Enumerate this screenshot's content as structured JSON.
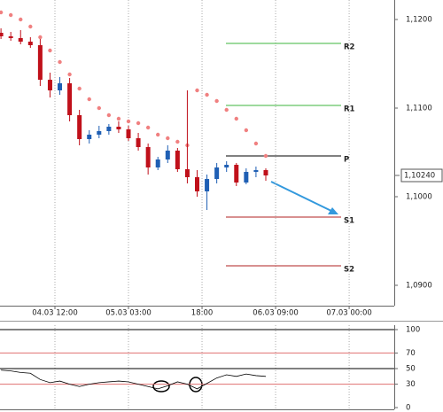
{
  "chart_data": {
    "type": "candlestick",
    "x": [
      1,
      3,
      5,
      7,
      9,
      11,
      13,
      15,
      17,
      19,
      21,
      23,
      25,
      27,
      29,
      31,
      33,
      35,
      37,
      39,
      41,
      43,
      45,
      47,
      49,
      51,
      53,
      55
    ],
    "open": [
      1.1185,
      1.1181,
      1.1179,
      1.1175,
      1.1171,
      1.1132,
      1.112,
      1.1128,
      1.1092,
      1.1065,
      1.107,
      1.1074,
      1.1079,
      1.1076,
      1.1066,
      1.1056,
      1.1033,
      1.1042,
      1.1052,
      1.1031,
      1.1022,
      1.1006,
      1.102,
      1.1033,
      1.1036,
      1.1016,
      1.1028,
      1.103
    ],
    "high": [
      1.119,
      1.1186,
      1.1188,
      1.118,
      1.1178,
      1.114,
      1.1135,
      1.1134,
      1.1098,
      1.1075,
      1.108,
      1.1082,
      1.1085,
      1.108,
      1.1072,
      1.106,
      1.1045,
      1.1058,
      1.1055,
      1.112,
      1.103,
      1.1025,
      1.1038,
      1.104,
      1.1038,
      1.1032,
      1.1034,
      1.1032
    ],
    "low": [
      1.1178,
      1.1176,
      1.1172,
      1.1168,
      1.1125,
      1.1112,
      1.1115,
      1.1085,
      1.1058,
      1.106,
      1.1066,
      1.107,
      1.1072,
      1.1063,
      1.1052,
      1.1025,
      1.103,
      1.1038,
      1.1028,
      1.1015,
      1.1,
      1.0985,
      1.1015,
      1.1028,
      1.1012,
      1.1014,
      1.1022,
      1.1018
    ],
    "close": [
      1.1181,
      1.1179,
      1.1175,
      1.1171,
      1.1132,
      1.112,
      1.1128,
      1.1092,
      1.1065,
      1.107,
      1.1074,
      1.1079,
      1.1076,
      1.1066,
      1.1056,
      1.1033,
      1.1042,
      1.1052,
      1.1031,
      1.1022,
      1.1006,
      1.102,
      1.1033,
      1.1036,
      1.1016,
      1.1028,
      1.103,
      1.1024
    ],
    "up_color": "#1f5fb4",
    "down_color": "#c0101a",
    "sar": {
      "color": "#f08080",
      "values": [
        1.1208,
        1.1205,
        1.12,
        1.1192,
        1.118,
        1.1165,
        1.1152,
        1.1138,
        1.1122,
        1.111,
        1.11,
        1.1092,
        1.1088,
        1.1085,
        1.1083,
        1.1078,
        1.107,
        1.1066,
        1.1062,
        1.1058,
        1.112,
        1.1115,
        1.1108,
        1.1098,
        1.1088,
        1.1075,
        1.106,
        1.1046
      ]
    },
    "xlim": [
      0.8,
      81.2
    ],
    "xticks": [
      {
        "value": 12,
        "label": "04.03 12:00"
      },
      {
        "value": 27,
        "label": "05.03 03:00"
      },
      {
        "value": 42,
        "label": "18:00"
      },
      {
        "value": 57,
        "label": "06.03 09:00"
      },
      {
        "value": 72,
        "label": "07.03 00:00"
      }
    ],
    "ylim": [
      1.0877,
      1.1222
    ],
    "yticks": [
      {
        "value": 1.12,
        "label": "1,1200"
      },
      {
        "value": 1.11,
        "label": "1,1100"
      },
      {
        "value": 1.1,
        "label": "1,1000"
      },
      {
        "value": 1.09,
        "label": "1,0900"
      }
    ],
    "last_price": {
      "value": 1.1024,
      "label": "1,10240"
    },
    "pivots": [
      {
        "name": "R2",
        "value": 1.1173,
        "color": "#3cb43c"
      },
      {
        "name": "R1",
        "value": 1.1103,
        "color": "#3cb43c"
      },
      {
        "name": "P",
        "value": 1.1046,
        "color": "#000000"
      },
      {
        "name": "S1",
        "value": 1.0977,
        "color": "#b22222"
      },
      {
        "name": "S2",
        "value": 1.0922,
        "color": "#b22222"
      }
    ],
    "rsi": {
      "color": "#000000",
      "values": [
        48,
        47,
        45,
        44,
        36,
        32,
        34,
        30,
        27,
        30,
        32,
        33,
        34,
        33,
        30,
        27,
        24,
        28,
        33,
        30,
        24,
        31,
        38,
        42,
        40,
        43,
        41,
        40
      ],
      "ylim": [
        0,
        100
      ],
      "yticks": [
        100,
        70,
        50,
        30,
        0
      ],
      "levels": [
        {
          "value": 100,
          "color": "#000000"
        },
        {
          "value": 70,
          "color": "#e07070"
        },
        {
          "value": 50,
          "color": "#000000"
        },
        {
          "value": 30,
          "color": "#e07070"
        }
      ]
    }
  }
}
